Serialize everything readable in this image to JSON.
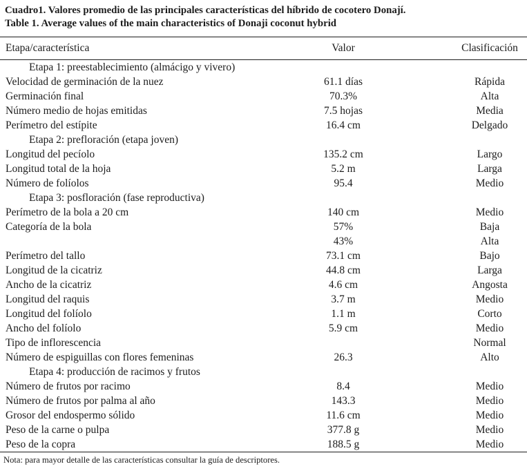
{
  "title": {
    "line1": "Cuadro1. Valores promedio de las principales características del híbrido de cocotero Donají.",
    "line2": "Table 1. Average values of the main characteristics of Donaji coconut hybrid"
  },
  "table": {
    "columns": [
      "Etapa/característica",
      "Valor",
      "Clasificación"
    ],
    "rows": [
      {
        "type": "section",
        "label": "Etapa 1: preestablecimiento (almácigo y vivero)"
      },
      {
        "type": "data",
        "label": "Velocidad de germinación de la nuez",
        "valor": "61.1 días",
        "clasificacion": "Rápida"
      },
      {
        "type": "data",
        "label": "Germinación final",
        "valor": "70.3%",
        "clasificacion": "Alta"
      },
      {
        "type": "data",
        "label": "Número medio de hojas emitidas",
        "valor": "7.5 hojas",
        "clasificacion": "Media"
      },
      {
        "type": "data",
        "label": "Perímetro del estípite",
        "valor": "16.4 cm",
        "clasificacion": "Delgado"
      },
      {
        "type": "section",
        "label": "Etapa 2: prefloración (etapa joven)"
      },
      {
        "type": "data",
        "label": "Longitud del pecíolo",
        "valor": "135.2 cm",
        "clasificacion": "Largo"
      },
      {
        "type": "data",
        "label": "Longitud total de la hoja",
        "valor": "5.2 m",
        "clasificacion": "Larga"
      },
      {
        "type": "data",
        "label": "Número de folíolos",
        "valor": "95.4",
        "clasificacion": "Medio"
      },
      {
        "type": "section",
        "label": "Etapa 3: posfloración (fase reproductiva)"
      },
      {
        "type": "data",
        "label": "Perímetro de la bola a 20 cm",
        "valor": "140 cm",
        "clasificacion": "Medio"
      },
      {
        "type": "data",
        "label": "Categoría de la bola",
        "valor": "57%",
        "clasificacion": "Baja"
      },
      {
        "type": "data",
        "label": "",
        "valor": "43%",
        "clasificacion": "Alta"
      },
      {
        "type": "data",
        "label": "Perímetro del tallo",
        "valor": "73.1 cm",
        "clasificacion": "Bajo"
      },
      {
        "type": "data",
        "label": "Longitud de la cicatriz",
        "valor": "44.8 cm",
        "clasificacion": "Larga"
      },
      {
        "type": "data",
        "label": "Ancho de la cicatriz",
        "valor": "4.6 cm",
        "clasificacion": "Angosta"
      },
      {
        "type": "data",
        "label": "Longitud del raquis",
        "valor": "3.7 m",
        "clasificacion": "Medio"
      },
      {
        "type": "data",
        "label": "Longitud del folíolo",
        "valor": "1.1 m",
        "clasificacion": "Corto"
      },
      {
        "type": "data",
        "label": "Ancho del folíolo",
        "valor": "5.9 cm",
        "clasificacion": "Medio"
      },
      {
        "type": "data",
        "label": "Tipo de inflorescencia",
        "valor": "",
        "clasificacion": "Normal"
      },
      {
        "type": "data",
        "label": "Número de espiguillas con flores femeninas",
        "valor": "26.3",
        "clasificacion": "Alto"
      },
      {
        "type": "section",
        "label": "Etapa 4: producción de racimos y frutos"
      },
      {
        "type": "data",
        "label": "Número de frutos por racimo",
        "valor": "8.4",
        "clasificacion": "Medio"
      },
      {
        "type": "data",
        "label": "Número de frutos por palma al año",
        "valor": "143.3",
        "clasificacion": "Medio"
      },
      {
        "type": "data",
        "label": "Grosor del endospermo sólido",
        "valor": "11.6 cm",
        "clasificacion": "Medio"
      },
      {
        "type": "data",
        "label": "Peso de la carne o pulpa",
        "valor": "377.8 g",
        "clasificacion": "Medio"
      },
      {
        "type": "data",
        "label": "Peso de la copra",
        "valor": "188.5 g",
        "clasificacion": "Medio"
      }
    ]
  },
  "note": "Nota: para mayor detalle de las características consultar la guía de descriptores."
}
